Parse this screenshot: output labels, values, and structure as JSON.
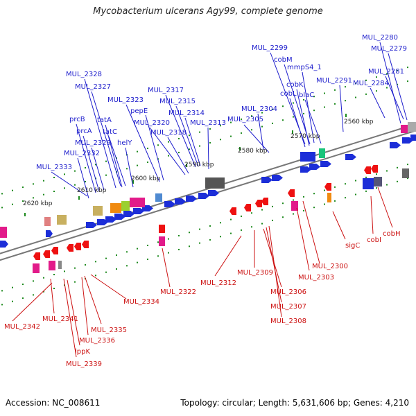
{
  "title": "Mycobacterium ulcerans Agy99, complete genome",
  "footer": {
    "accession": "Accession: NC_008611",
    "topology": "Topology: circular; Length: 5,631,606 bp; Genes: 4,210"
  },
  "colors": {
    "forward_gene": "#1c2ed8",
    "reverse_gene": "#ee1111",
    "label_top": "#1c1ccc",
    "label_bottom": "#cc1111",
    "tick": "#1e8a1e",
    "axis_label": "#222222"
  },
  "kbp_ticks": [
    "2560 kbp",
    "2570 kbp",
    "2580 kbp",
    "2590 kbp",
    "2600 kbp",
    "2610 kbp",
    "2620 kbp"
  ],
  "top_labels": [
    "MUL_2280",
    "MUL_2279",
    "MUL_2281",
    "MUL_2284",
    "MUL_2299",
    "cobM",
    "mmpS4_1",
    "cobK",
    "cobL",
    "blaC",
    "MUL_2291",
    "MUL_2304",
    "MUL_2305",
    "MUL_2317",
    "MUL_2315",
    "MUL_2314",
    "MUL_2320",
    "MUL_2313",
    "MUL_2318",
    "MUL_2323",
    "pepE",
    "MUL_2328",
    "MUL_2327",
    "prcB",
    "prcA",
    "tatA",
    "tatC",
    "MUL_2329",
    "helY",
    "MUL_2332",
    "MUL_2333"
  ],
  "bottom_labels": [
    "sigC",
    "cobI",
    "cobH",
    "MUL_2300",
    "MUL_2303",
    "MUL_2309",
    "MUL_2312",
    "MUL_2306",
    "MUL_2307",
    "MUL_2308",
    "MUL_2322",
    "MUL_2334",
    "MUL_2335",
    "MUL_2336",
    "lppK",
    "MUL_2339",
    "MUL_2341",
    "MUL_2342"
  ]
}
